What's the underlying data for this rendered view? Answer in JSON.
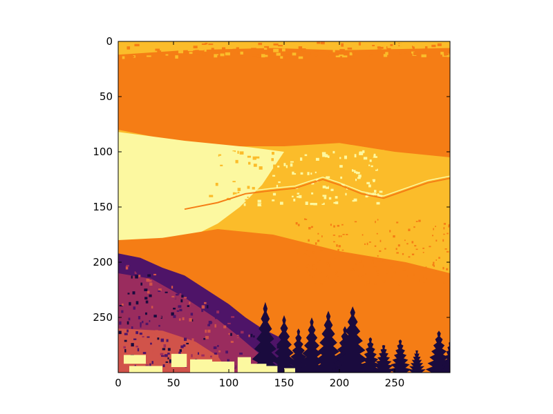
{
  "chart_data": {
    "type": "heatmap",
    "title": "",
    "xlabel": "",
    "ylabel": "",
    "colormap": "inferno",
    "xlim": [
      0,
      300
    ],
    "ylim": [
      300,
      0
    ],
    "xticks": [
      0,
      50,
      100,
      150,
      200,
      250
    ],
    "yticks": [
      0,
      50,
      100,
      150,
      200,
      250
    ],
    "grid": false,
    "image_shape": [
      300,
      300
    ],
    "palette": [
      "#1a0b3e",
      "#4e1468",
      "#9a2c5e",
      "#d1534a",
      "#f57d15",
      "#fbbc2a",
      "#fcf8a0"
    ],
    "levels": [
      0,
      1,
      2,
      3,
      4,
      5,
      6
    ],
    "regions": [
      {
        "name": "sky-top-speckle",
        "rows": [
          0,
          15
        ],
        "level": 5
      },
      {
        "name": "dark-orange-sky-band",
        "rows": [
          12,
          95
        ],
        "level": 4
      },
      {
        "name": "bright-hillside",
        "rows": [
          80,
          185
        ],
        "level": 6
      },
      {
        "name": "mid-yellow-hill",
        "rows": [
          120,
          230
        ],
        "level": 5
      },
      {
        "name": "orange-valley-band",
        "rows": [
          180,
          310
        ],
        "level": 4
      },
      {
        "name": "dark-treeline",
        "rows": [
          190,
          300
        ],
        "level": 0
      }
    ]
  }
}
